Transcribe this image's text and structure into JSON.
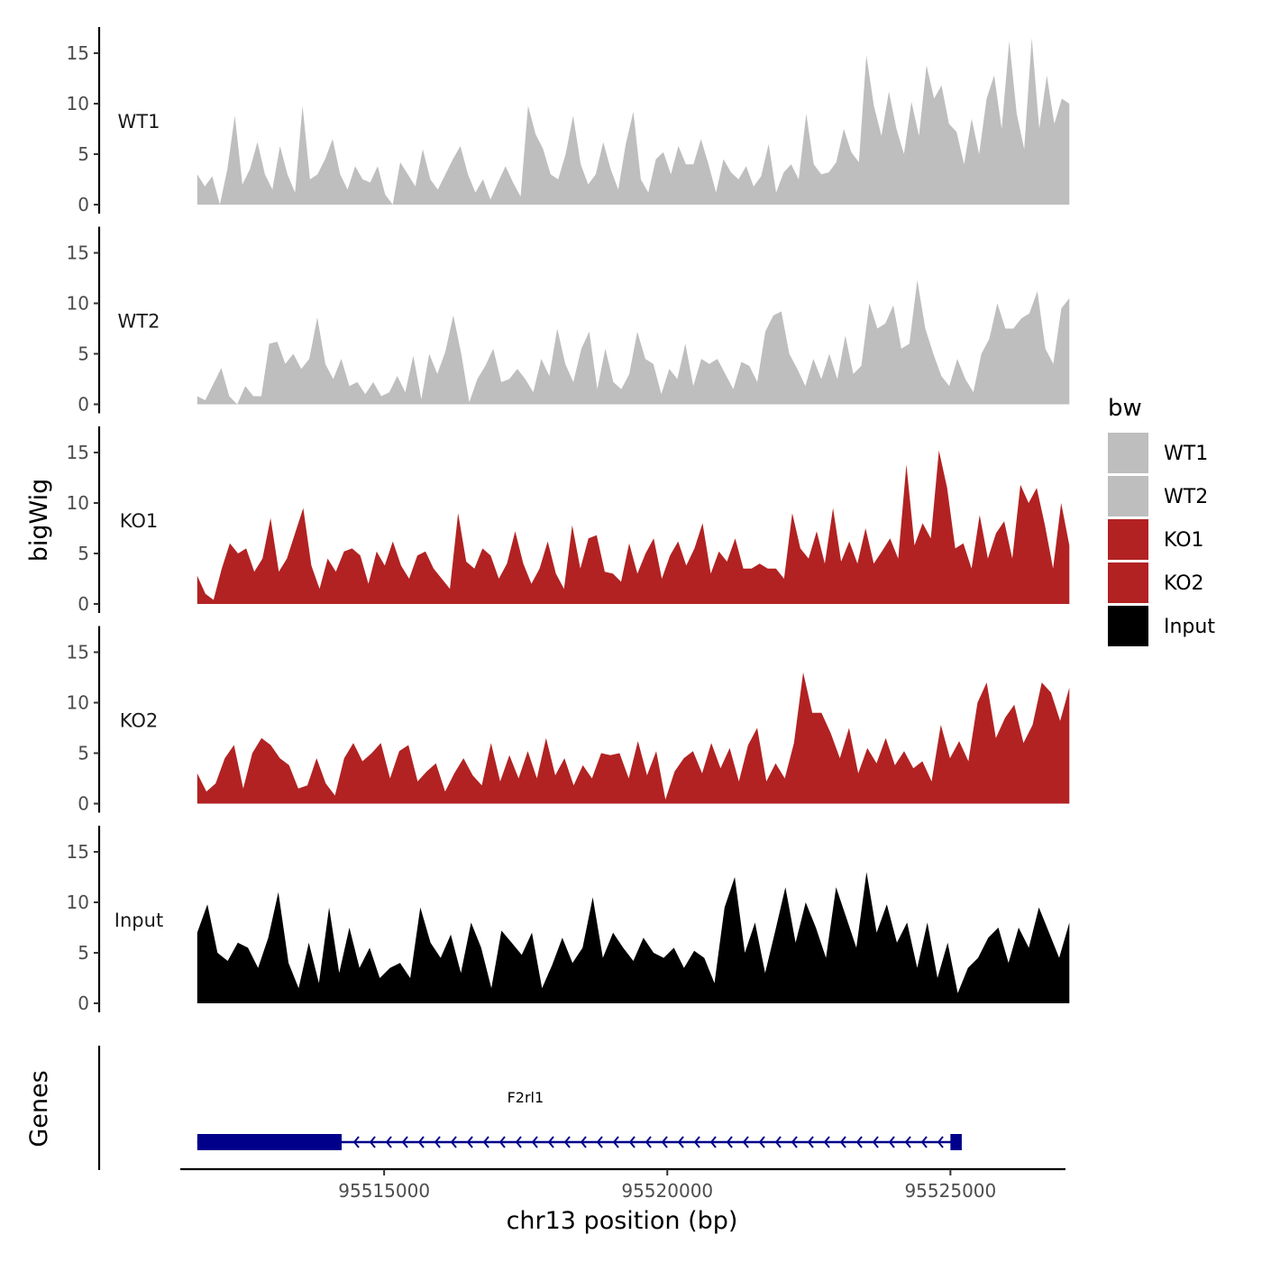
{
  "chart_data": {
    "type": "area",
    "title": "",
    "ylabel": "bigWig",
    "xlabel": "chr13 position (bp)",
    "genes_axis_label": "Genes",
    "xlim": [
      95511400,
      95527000
    ],
    "ylim": [
      0,
      17
    ],
    "x_ticks": [
      95515000,
      95520000,
      95525000
    ],
    "x_tick_labels": [
      "95515000",
      "95520000",
      "95525000"
    ],
    "y_ticks": [
      0,
      5,
      10,
      15
    ],
    "y_tick_labels": [
      "0",
      "5",
      "10",
      "15"
    ],
    "x_start": 95511700,
    "x_end": 95527100,
    "legend": {
      "title": "bw",
      "position": "right",
      "entries": [
        {
          "label": "WT1",
          "color": "#bebebe"
        },
        {
          "label": "WT2",
          "color": "#bebebe"
        },
        {
          "label": "KO1",
          "color": "#b22222"
        },
        {
          "label": "KO2",
          "color": "#b22222"
        },
        {
          "label": "Input",
          "color": "#000000"
        }
      ]
    },
    "series": [
      {
        "name": "WT1",
        "color": "#bebebe",
        "values": [
          3,
          1.8,
          2.8,
          0,
          3.5,
          8.8,
          2,
          3.5,
          6.2,
          3,
          1.5,
          5.8,
          3,
          1.2,
          9.8,
          2.5,
          3,
          4.5,
          6.5,
          3,
          1.5,
          3.8,
          2.5,
          2.2,
          3.8,
          1,
          0,
          4.2,
          3,
          1.8,
          5.5,
          2.5,
          1.5,
          3,
          4.5,
          5.8,
          3,
          1.2,
          2.5,
          0.5,
          2.2,
          3.8,
          2.2,
          0.8,
          9.8,
          7,
          5.5,
          3,
          2.5,
          5,
          8.8,
          4,
          2,
          3,
          6.2,
          3.5,
          1.5,
          6,
          9.2,
          2.5,
          1.2,
          4.5,
          5.2,
          3,
          5.8,
          4,
          4,
          6.5,
          4,
          1.2,
          4.5,
          3.2,
          2.5,
          3.8,
          1.8,
          2.8,
          6,
          1.2,
          3.2,
          4,
          2.5,
          9,
          4,
          3,
          3.2,
          4.2,
          7.5,
          5.2,
          4.2,
          14.8,
          9.8,
          6.8,
          11.2,
          7.5,
          5,
          10.2,
          6.8,
          13.8,
          10.5,
          11.8,
          8,
          7.2,
          4,
          8.5,
          5,
          10.5,
          12.8,
          7.5,
          16.2,
          9,
          5.5,
          16.5,
          7.5,
          12.8,
          8,
          10.5,
          10
        ]
      },
      {
        "name": "WT2",
        "color": "#bebebe",
        "values": [
          0.8,
          0.4,
          2,
          3.6,
          0.8,
          0,
          1.8,
          0.8,
          0.8,
          6,
          6.2,
          4,
          5,
          3.5,
          4.5,
          8.6,
          4,
          2.5,
          4.5,
          1.8,
          2.2,
          1,
          2.2,
          0.8,
          1.2,
          2.8,
          1.2,
          4.8,
          0.5,
          5,
          3,
          5.2,
          8.8,
          5,
          0.2,
          2.5,
          3.8,
          5.5,
          2.2,
          2.5,
          3.5,
          2.5,
          1.2,
          4.5,
          2.8,
          7.5,
          4,
          2.2,
          5.5,
          7.2,
          1.5,
          5.5,
          2.2,
          1.5,
          3,
          7.2,
          4.5,
          4,
          1,
          3.5,
          2.5,
          6,
          1.8,
          4.5,
          4,
          4.5,
          3,
          1.5,
          4.2,
          3.8,
          2.2,
          7.2,
          8.8,
          9.2,
          5,
          3.5,
          1.8,
          4.5,
          2.5,
          5,
          2.5,
          6.8,
          3,
          3.8,
          10,
          7.5,
          8,
          9.8,
          5.5,
          6,
          12.3,
          7.5,
          5,
          2.8,
          1.8,
          4.5,
          2.5,
          1.2,
          5,
          6.5,
          10,
          7.5,
          7.5,
          8.5,
          9,
          11.2,
          5.5,
          4,
          9.5,
          10.5
        ]
      },
      {
        "name": "KO1",
        "color": "#b22222",
        "values": [
          2.8,
          1,
          0.4,
          3.5,
          6,
          5,
          5.5,
          3.2,
          4.5,
          8.5,
          3.2,
          4.5,
          7,
          9.5,
          3.8,
          1.5,
          4.5,
          3.2,
          5.2,
          5.5,
          4.8,
          2,
          5.2,
          3.8,
          6.2,
          3.8,
          2.5,
          4.8,
          5.2,
          3.5,
          2.5,
          1.5,
          9,
          4.2,
          3.5,
          5.5,
          4.8,
          2.5,
          4,
          7.2,
          4,
          2,
          3.5,
          6.2,
          3,
          1.5,
          7.8,
          3.5,
          6.5,
          6.8,
          3.2,
          3,
          2.2,
          6,
          3,
          5,
          6.5,
          2.5,
          4.8,
          6.2,
          3.8,
          5.5,
          8,
          3,
          5.2,
          4.2,
          6.5,
          3.5,
          3.5,
          4,
          3.5,
          3.5,
          2.5,
          9,
          5.5,
          4.5,
          7.2,
          4,
          9.5,
          4.2,
          6.2,
          4,
          7.5,
          4,
          5.2,
          6.5,
          4.5,
          13.8,
          5.8,
          8,
          6.5,
          15.2,
          11.5,
          5.5,
          6,
          3.5,
          8.8,
          4.5,
          7,
          8.2,
          4.5,
          11.8,
          10,
          11.5,
          7.8,
          3.5,
          10,
          5.8
        ]
      },
      {
        "name": "KO2",
        "color": "#b22222",
        "values": [
          3,
          1.2,
          2,
          4.5,
          5.8,
          1.5,
          5,
          6.5,
          5.8,
          4.5,
          3.8,
          1.5,
          1.8,
          4.5,
          2,
          0.8,
          4.5,
          6,
          4.2,
          5,
          6,
          2.5,
          5.2,
          5.8,
          2.2,
          3.2,
          4,
          1.2,
          3,
          4.5,
          2.8,
          1.8,
          6,
          2.2,
          4.8,
          2.5,
          5.2,
          2.5,
          6.5,
          2.8,
          4.5,
          1.8,
          3.8,
          2.5,
          5,
          4.8,
          5,
          2.5,
          6.2,
          2.8,
          5.2,
          0.4,
          3.2,
          4.5,
          5.2,
          3,
          6,
          3.5,
          5.5,
          2.2,
          5.8,
          7.5,
          2.2,
          4,
          2.5,
          6,
          13,
          9,
          9,
          7,
          4.5,
          7.5,
          3,
          5.5,
          4,
          6.5,
          3.8,
          5.2,
          3.5,
          4.2,
          2.2,
          7.8,
          4.5,
          6.2,
          4.2,
          10,
          12,
          6.5,
          8.5,
          9.8,
          6,
          7.8,
          12,
          11,
          8.2,
          11.5
        ]
      },
      {
        "name": "Input",
        "color": "#000000",
        "values": [
          7,
          9.8,
          5,
          4.2,
          6,
          5.5,
          3.5,
          6.5,
          11,
          4,
          1.5,
          6,
          2,
          9.5,
          3,
          7.5,
          3.5,
          5.5,
          2.5,
          3.5,
          4,
          2.5,
          9.5,
          6,
          4.5,
          6.8,
          3,
          8,
          5.5,
          1.5,
          7.2,
          6,
          4.8,
          7,
          1.5,
          3.8,
          6.5,
          4,
          5.5,
          10.5,
          4.5,
          7,
          5.5,
          4.2,
          6.5,
          5,
          4.5,
          5.5,
          3.5,
          5.2,
          4.5,
          2,
          9.5,
          12.5,
          5,
          8,
          3,
          7.2,
          11.5,
          6,
          10,
          7.5,
          4.5,
          11.5,
          8.5,
          5.5,
          13,
          7,
          9.8,
          6,
          8,
          3.5,
          8,
          2.5,
          6,
          1,
          3.5,
          4.5,
          6.5,
          7.5,
          4,
          7.5,
          5.5,
          9.5,
          7,
          4.5,
          8
        ]
      }
    ],
    "gene": {
      "name": "F2rl1",
      "strand": "-",
      "start": 95511700,
      "end": 95525200,
      "exons": [
        {
          "start": 95511700,
          "end": 95514250
        },
        {
          "start": 95525000,
          "end": 95525200
        }
      ],
      "color": "#00008b"
    }
  }
}
